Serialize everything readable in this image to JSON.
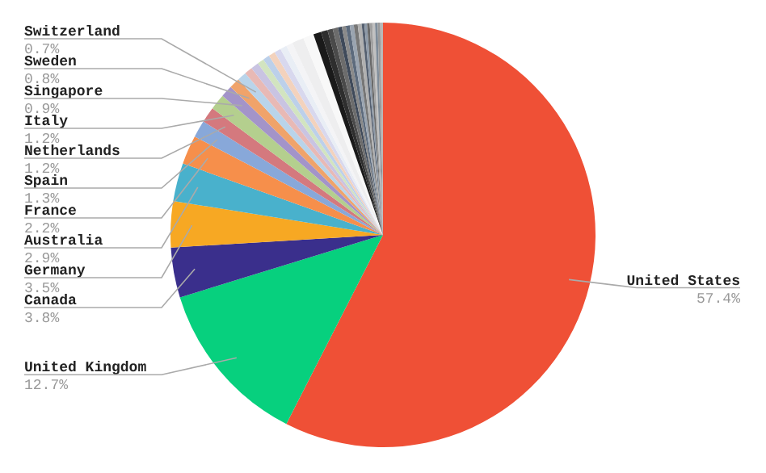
{
  "chart_data": {
    "type": "pie",
    "legend": false,
    "categories": [
      "United States",
      "United Kingdom",
      "Canada",
      "Germany",
      "Australia",
      "France",
      "Spain",
      "Netherlands",
      "Italy",
      "Singapore",
      "Sweden",
      "Switzerland",
      null,
      null,
      null,
      null,
      null,
      null,
      null,
      null,
      null,
      null,
      null,
      null,
      null,
      null,
      null,
      null,
      null,
      null,
      null,
      null,
      null,
      null,
      null,
      null,
      null,
      null,
      null,
      null
    ],
    "values": [
      57.4,
      12.7,
      3.8,
      3.5,
      2.9,
      2.2,
      1.3,
      1.2,
      1.2,
      0.9,
      0.8,
      0.7,
      0.6,
      0.6,
      0.5,
      0.5,
      0.5,
      0.5,
      0.5,
      0.5,
      0.9,
      0.8,
      0.6,
      0.5,
      0.4,
      0.4,
      0.3,
      0.3,
      0.3,
      0.3,
      0.3,
      0.3,
      0.2,
      0.2,
      0.2,
      0.2,
      0.2,
      0.2,
      0.2,
      0.2
    ],
    "colors": [
      "#ef5036",
      "#07d07e",
      "#3a2f8c",
      "#f7a823",
      "#49b1cc",
      "#f68f4b",
      "#88a8d9",
      "#d4797e",
      "#b4cf8e",
      "#a394c9",
      "#f0a36a",
      "#b9d4ea",
      "#e8b9b5",
      "#c9c4e2",
      "#d2e4c0",
      "#bcd0ea",
      "#f3d2bd",
      "#d8d8ee",
      "#e9eef5",
      "#f4f4f6",
      "#eeeeef",
      "#f8f8f8",
      "#1a1a1a",
      "#2e2e2e",
      "#4a4a4a",
      "#6c6c6c",
      "#3f4a5a",
      "#8a8a8a",
      "#5d6b7d",
      "#9aa4b0",
      "#777777",
      "#b0b0b0",
      "#556070",
      "#8e9aa8",
      "#6a6a6a",
      "#a0a0a0",
      "#c0c0c0",
      "#7f8c99",
      "#999999",
      "#b8b8b8"
    ],
    "value_labels": [
      "57.4%",
      "12.7%",
      "3.8%",
      "3.5%",
      "2.9%",
      "2.2%",
      "1.3%",
      "1.2%",
      "1.2%",
      "0.9%",
      "0.8%",
      "0.7%",
      null,
      null,
      null,
      null,
      null,
      null,
      null,
      null,
      null,
      null,
      null,
      null,
      null,
      null,
      null,
      null,
      null,
      null,
      null,
      null,
      null,
      null,
      null,
      null,
      null,
      null,
      null,
      null
    ]
  }
}
